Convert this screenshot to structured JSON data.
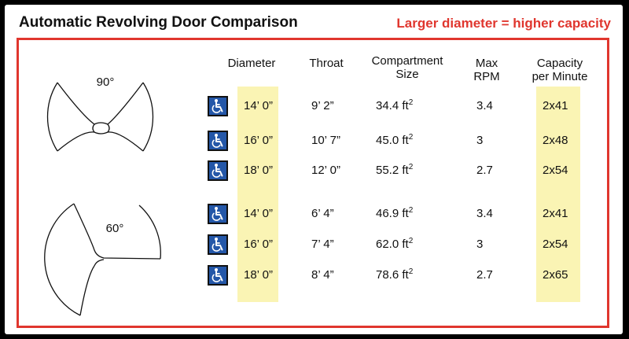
{
  "title": "Automatic Revolving Door Comparison",
  "subtitle": "Larger diameter = higher capacity",
  "diagrams": [
    {
      "label": "90°"
    },
    {
      "label": "60°"
    }
  ],
  "headers": {
    "diameter": "Diameter",
    "throat": "Throat",
    "compartment_line1": "Compartment",
    "compartment_line2": "Size",
    "rpm_line1": "Max",
    "rpm_line2": "RPM",
    "capacity_line1": "Capacity",
    "capacity_line2": "per Minute"
  },
  "rows": [
    {
      "diameter": "14’ 0”",
      "throat": "9’ 2”",
      "size": "34.4 ft",
      "size_exp": "2",
      "rpm": "3.4",
      "capacity": "2x41"
    },
    {
      "diameter": "16’ 0”",
      "throat": "10’ 7”",
      "size": "45.0 ft",
      "size_exp": "2",
      "rpm": "3",
      "capacity": "2x48"
    },
    {
      "diameter": "18’ 0”",
      "throat": "12’ 0”",
      "size": "55.2 ft",
      "size_exp": "2",
      "rpm": "2.7",
      "capacity": "2x54"
    },
    {
      "diameter": "14’ 0”",
      "throat": "6’ 4”",
      "size": "46.9 ft",
      "size_exp": "2",
      "rpm": "3.4",
      "capacity": "2x41"
    },
    {
      "diameter": "16’ 0”",
      "throat": "7’ 4”",
      "size": "62.0 ft",
      "size_exp": "2",
      "rpm": "3",
      "capacity": "2x54"
    },
    {
      "diameter": "18’ 0”",
      "throat": "8’ 4”",
      "size": "78.6 ft",
      "size_exp": "2",
      "rpm": "2.7",
      "capacity": "2x65"
    }
  ],
  "icons": {
    "accessible": "wheelchair-accessible-icon"
  },
  "colors": {
    "accent": "#e0362e",
    "highlight": "#faf4b4",
    "icon_bg": "#2457a8"
  }
}
